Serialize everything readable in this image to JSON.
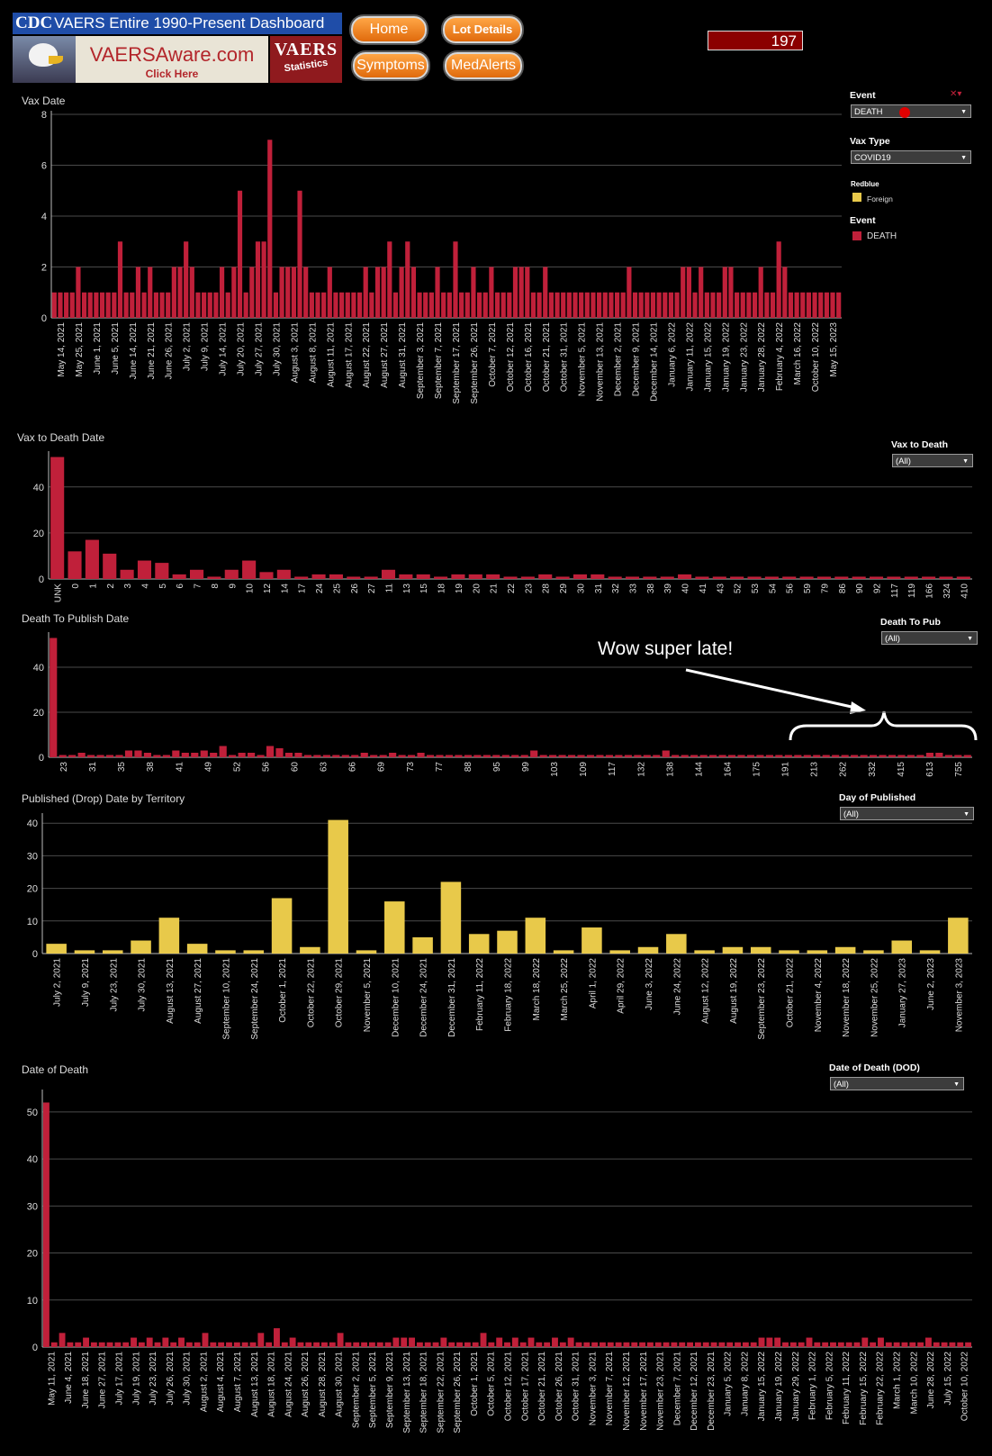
{
  "header": {
    "cdc": "CDC",
    "dashboard_title": "VAERS Entire 1990-Present Dashboard",
    "vaersaware": "VAERSAware.com",
    "click_here": "Click Here",
    "vaers_logo": "VAERS",
    "statistics": "Statistics",
    "buttons": {
      "home": "Home",
      "lot_details": "Lot Details",
      "symptoms": "Symptoms",
      "medalerts": "MedAlerts"
    },
    "count": "197"
  },
  "colors": {
    "red": "#c0203a",
    "yellow": "#e8c94a",
    "grid": "#4a4a4a",
    "axis": "#bbbbbb"
  },
  "filters": {
    "event_label": "Event",
    "event_value": "DEATH",
    "vax_type_label": "Vax Type",
    "vax_type_value": "COVID19",
    "legend1_title": "Redblue",
    "legend1_item": "Foreign",
    "legend2_title": "Event",
    "legend2_item": "DEATH",
    "vax_to_death_label": "Vax to Death",
    "vax_to_death_value": "(All)",
    "death_to_pub_label": "Death To Pub",
    "death_to_pub_value": "(All)",
    "day_published_label": "Day of Published",
    "day_published_value": "(All)",
    "dod_label": "Date of Death (DOD)",
    "dod_value": "(All)"
  },
  "annotation": "Wow super late!",
  "chart_data": [
    {
      "type": "bar",
      "title": "Vax Date",
      "ylim": [
        0,
        8
      ],
      "yticks": [
        0,
        2,
        4,
        6,
        8
      ],
      "color": "red",
      "tick_labels": [
        "May 14, 2021",
        "May 25, 2021",
        "June 1, 2021",
        "June 5, 2021",
        "June 14, 2021",
        "June 21, 2021",
        "June 26, 2021",
        "July 2, 2021",
        "July 9, 2021",
        "July 14, 2021",
        "July 20, 2021",
        "July 27, 2021",
        "July 30, 2021",
        "August 3, 2021",
        "August 8, 2021",
        "August 11, 2021",
        "August 17, 2021",
        "August 22, 2021",
        "August 27, 2021",
        "August 31, 2021",
        "September 3, 2021",
        "September 7, 2021",
        "September 17, 2021",
        "September 26, 2021",
        "October 7, 2021",
        "October 12, 2021",
        "October 16, 2021",
        "October 21, 2021",
        "October 31, 2021",
        "November 5, 2021",
        "November 13, 2021",
        "December 2, 2021",
        "December 9, 2021",
        "December 14, 2021",
        "January 6, 2022",
        "January 11, 2022",
        "January 15, 2022",
        "January 19, 2022",
        "January 23, 2022",
        "January 28, 2022",
        "February 4, 2022",
        "March 16, 2022",
        "October 10, 2022",
        "May 15, 2023"
      ],
      "values": [
        1,
        1,
        1,
        1,
        2,
        1,
        1,
        1,
        1,
        1,
        1,
        3,
        1,
        1,
        2,
        1,
        2,
        1,
        1,
        1,
        2,
        2,
        3,
        2,
        1,
        1,
        1,
        1,
        2,
        1,
        2,
        5,
        1,
        2,
        3,
        3,
        7,
        1,
        2,
        2,
        2,
        5,
        2,
        1,
        1,
        1,
        2,
        1,
        1,
        1,
        1,
        1,
        2,
        1,
        2,
        2,
        3,
        1,
        2,
        3,
        2,
        1,
        1,
        1,
        2,
        1,
        1,
        3,
        1,
        1,
        2,
        1,
        1,
        2,
        1,
        1,
        1,
        2,
        2,
        2,
        1,
        1,
        2,
        1,
        1,
        1,
        1,
        1,
        1,
        1,
        1,
        1,
        1,
        1,
        1,
        1,
        2,
        1,
        1,
        1,
        1,
        1,
        1,
        1,
        1,
        2,
        2,
        1,
        2,
        1,
        1,
        1,
        2,
        2,
        1,
        1,
        1,
        1,
        2,
        1,
        1,
        3,
        2,
        1,
        1,
        1,
        1,
        1,
        1,
        1,
        1,
        1
      ]
    },
    {
      "type": "bar",
      "title": "Vax to Death Date",
      "ylim": [
        0,
        54
      ],
      "yticks": [
        0,
        20,
        40
      ],
      "color": "red",
      "categories": [
        "UNK",
        "0",
        "1",
        "2",
        "3",
        "4",
        "5",
        "6",
        "7",
        "8",
        "9",
        "10",
        "12",
        "14",
        "17",
        "24",
        "25",
        "26",
        "27",
        "11",
        "13",
        "15",
        "18",
        "19",
        "20",
        "21",
        "22",
        "23",
        "28",
        "29",
        "30",
        "31",
        "32",
        "33",
        "38",
        "39",
        "40",
        "41",
        "43",
        "52",
        "53",
        "54",
        "56",
        "59",
        "79",
        "86",
        "90",
        "92",
        "117",
        "119",
        "166",
        "324",
        "410"
      ],
      "values": [
        53,
        12,
        17,
        11,
        4,
        8,
        7,
        2,
        4,
        1,
        4,
        8,
        3,
        4,
        1,
        2,
        2,
        1,
        1,
        4,
        2,
        2,
        1,
        2,
        2,
        2,
        1,
        1,
        2,
        1,
        2,
        2,
        1,
        1,
        1,
        1,
        2,
        1,
        1,
        1,
        1,
        1,
        1,
        1,
        1,
        1,
        1,
        1,
        1,
        1,
        1,
        1,
        1
      ]
    },
    {
      "type": "bar",
      "title": "Death To Publish Date",
      "ylim": [
        0,
        54
      ],
      "yticks": [
        0,
        20,
        40
      ],
      "color": "red",
      "tick_labels": [
        "23",
        "31",
        "35",
        "38",
        "41",
        "49",
        "52",
        "56",
        "60",
        "63",
        "66",
        "69",
        "73",
        "77",
        "88",
        "95",
        "99",
        "103",
        "109",
        "117",
        "132",
        "138",
        "144",
        "164",
        "175",
        "191",
        "213",
        "262",
        "332",
        "415",
        "613",
        "755"
      ],
      "values": [
        53,
        1,
        1,
        2,
        1,
        1,
        1,
        1,
        3,
        3,
        2,
        1,
        1,
        3,
        2,
        2,
        3,
        2,
        5,
        1,
        2,
        2,
        1,
        5,
        4,
        2,
        2,
        1,
        1,
        1,
        1,
        1,
        1,
        2,
        1,
        1,
        2,
        1,
        1,
        2,
        1,
        1,
        1,
        1,
        1,
        1,
        1,
        1,
        1,
        1,
        1,
        3,
        1,
        1,
        1,
        1,
        1,
        1,
        1,
        1,
        1,
        1,
        1,
        1,
        1,
        3,
        1,
        1,
        1,
        1,
        1,
        1,
        1,
        1,
        1,
        1,
        1,
        1,
        1,
        1,
        1,
        1,
        1,
        1,
        1,
        1,
        1,
        1,
        1,
        1,
        1,
        1,
        1,
        2,
        2,
        1,
        1,
        1
      ]
    },
    {
      "type": "bar",
      "title": "Published (Drop) Date by Territory",
      "ylim": [
        0,
        42
      ],
      "yticks": [
        0,
        10,
        20,
        30,
        40
      ],
      "color": "yellow",
      "categories": [
        "July 2, 2021",
        "July 9, 2021",
        "July 23, 2021",
        "July 30, 2021",
        "August 13, 2021",
        "August 27, 2021",
        "September 10, 2021",
        "September 24, 2021",
        "October 1, 2021",
        "October 22, 2021",
        "October 29, 2021",
        "November 5, 2021",
        "December 10, 2021",
        "December 24, 2021",
        "December 31, 2021",
        "February 11, 2022",
        "February 18, 2022",
        "March 18, 2022",
        "March 25, 2022",
        "April 1, 2022",
        "April 29, 2022",
        "June 3, 2022",
        "June 24, 2022",
        "August 12, 2022",
        "August 19, 2022",
        "September 23, 2022",
        "October 21, 2022",
        "November 4, 2022",
        "November 18, 2022",
        "November 25, 2022",
        "January 27, 2023",
        "June 2, 2023",
        "November 3, 2023"
      ],
      "values": [
        3,
        1,
        1,
        4,
        11,
        3,
        1,
        1,
        17,
        2,
        41,
        1,
        16,
        5,
        22,
        6,
        7,
        11,
        1,
        8,
        1,
        2,
        6,
        1,
        2,
        2,
        1,
        1,
        2,
        1,
        4,
        1,
        11
      ]
    },
    {
      "type": "bar",
      "title": "Date of Death",
      "ylim": [
        0,
        54
      ],
      "yticks": [
        0,
        10,
        20,
        30,
        40,
        50
      ],
      "color": "red",
      "tick_labels": [
        "May 11, 2021",
        "June 4, 2021",
        "June 18, 2021",
        "June 27, 2021",
        "July 17, 2021",
        "July 19, 2021",
        "July 23, 2021",
        "July 26, 2021",
        "July 30, 2021",
        "August 2, 2021",
        "August 4, 2021",
        "August 7, 2021",
        "August 13, 2021",
        "August 18, 2021",
        "August 24, 2021",
        "August 26, 2021",
        "August 28, 2021",
        "August 30, 2021",
        "September 2, 2021",
        "September 5, 2021",
        "September 9, 2021",
        "September 13, 2021",
        "September 18, 2021",
        "September 22, 2021",
        "September 26, 2021",
        "October 1, 2021",
        "October 5, 2021",
        "October 12, 2021",
        "October 17, 2021",
        "October 21, 2021",
        "October 26, 2021",
        "October 31, 2021",
        "November 3, 2021",
        "November 7, 2021",
        "November 12, 2021",
        "November 17, 2021",
        "November 23, 2021",
        "December 7, 2021",
        "December 12, 2021",
        "December 23, 2021",
        "January 5, 2022",
        "January 8, 2022",
        "January 15, 2022",
        "January 19, 2022",
        "January 29, 2022",
        "February 1, 2022",
        "February 5, 2022",
        "February 11, 2022",
        "February 15, 2022",
        "February 22, 2022",
        "March 1, 2022",
        "March 10, 2022",
        "June 28, 2022",
        "July 15, 2022",
        "October 10, 2022"
      ],
      "values": [
        52,
        1,
        3,
        1,
        1,
        2,
        1,
        1,
        1,
        1,
        1,
        2,
        1,
        2,
        1,
        2,
        1,
        2,
        1,
        1,
        3,
        1,
        1,
        1,
        1,
        1,
        1,
        3,
        1,
        4,
        1,
        2,
        1,
        1,
        1,
        1,
        1,
        3,
        1,
        1,
        1,
        1,
        1,
        1,
        2,
        2,
        2,
        1,
        1,
        1,
        2,
        1,
        1,
        1,
        1,
        3,
        1,
        2,
        1,
        2,
        1,
        2,
        1,
        1,
        2,
        1,
        2,
        1,
        1,
        1,
        1,
        1,
        1,
        1,
        1,
        1,
        1,
        1,
        1,
        1,
        1,
        1,
        1,
        1,
        1,
        1,
        1,
        1,
        1,
        1,
        2,
        2,
        2,
        1,
        1,
        1,
        2,
        1,
        1,
        1,
        1,
        1,
        1,
        2,
        1,
        2,
        1,
        1,
        1,
        1,
        1,
        2,
        1,
        1,
        1,
        1,
        1
      ]
    }
  ]
}
